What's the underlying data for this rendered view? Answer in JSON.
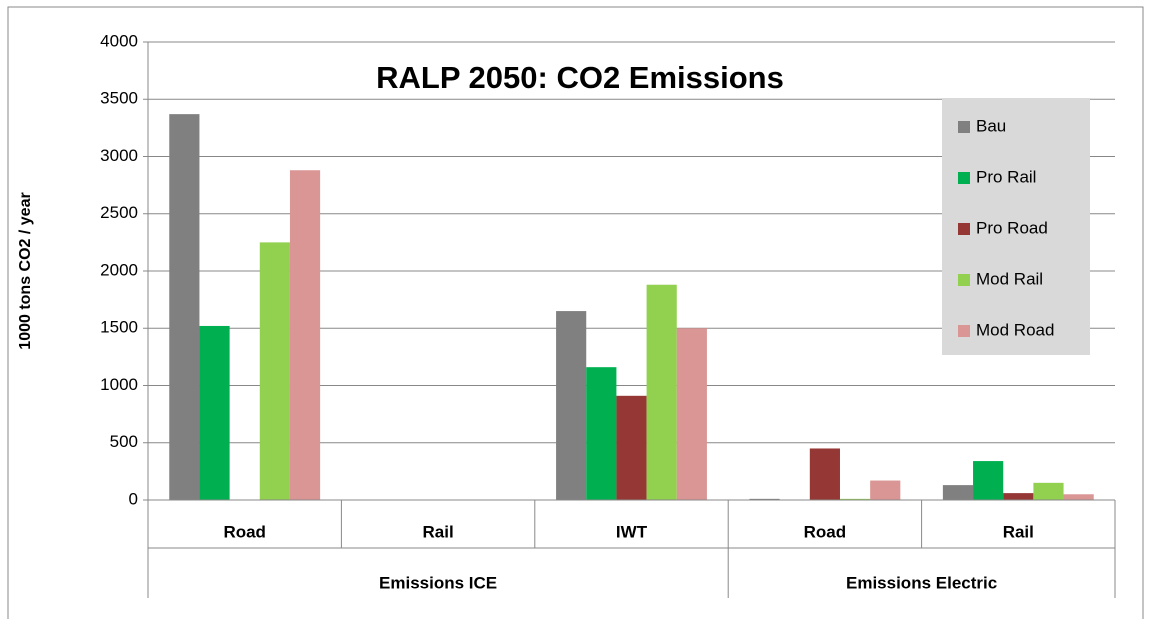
{
  "chart_data": {
    "type": "bar",
    "title": "RALP 2050: CO2 Emissions",
    "y_label": "1000 tons CO2 / year",
    "category_groups": [
      {
        "name": "Emissions ICE",
        "categories": [
          "Road",
          "Rail",
          "IWT"
        ]
      },
      {
        "name": "Emissions Electric",
        "categories": [
          "Road",
          "Rail"
        ]
      }
    ],
    "series": [
      {
        "name": "Bau",
        "color": "#808080",
        "values": [
          3370,
          0,
          1650,
          10,
          130
        ]
      },
      {
        "name": "Pro Rail",
        "color": "#00b050",
        "values": [
          1520,
          0,
          1160,
          0,
          340
        ]
      },
      {
        "name": "Pro Road",
        "color": "#953735",
        "values": [
          0,
          0,
          910,
          450,
          60
        ]
      },
      {
        "name": "Mod Rail",
        "color": "#92d050",
        "values": [
          2250,
          0,
          1880,
          10,
          150
        ]
      },
      {
        "name": "Mod Road",
        "color": "#d99694",
        "values": [
          2880,
          0,
          1500,
          170,
          50
        ]
      }
    ],
    "ylim": [
      0,
      4000
    ],
    "yticks": [
      0,
      500,
      1000,
      1500,
      2000,
      2500,
      3000,
      3500,
      4000
    ],
    "grid": true,
    "legend": "right"
  }
}
